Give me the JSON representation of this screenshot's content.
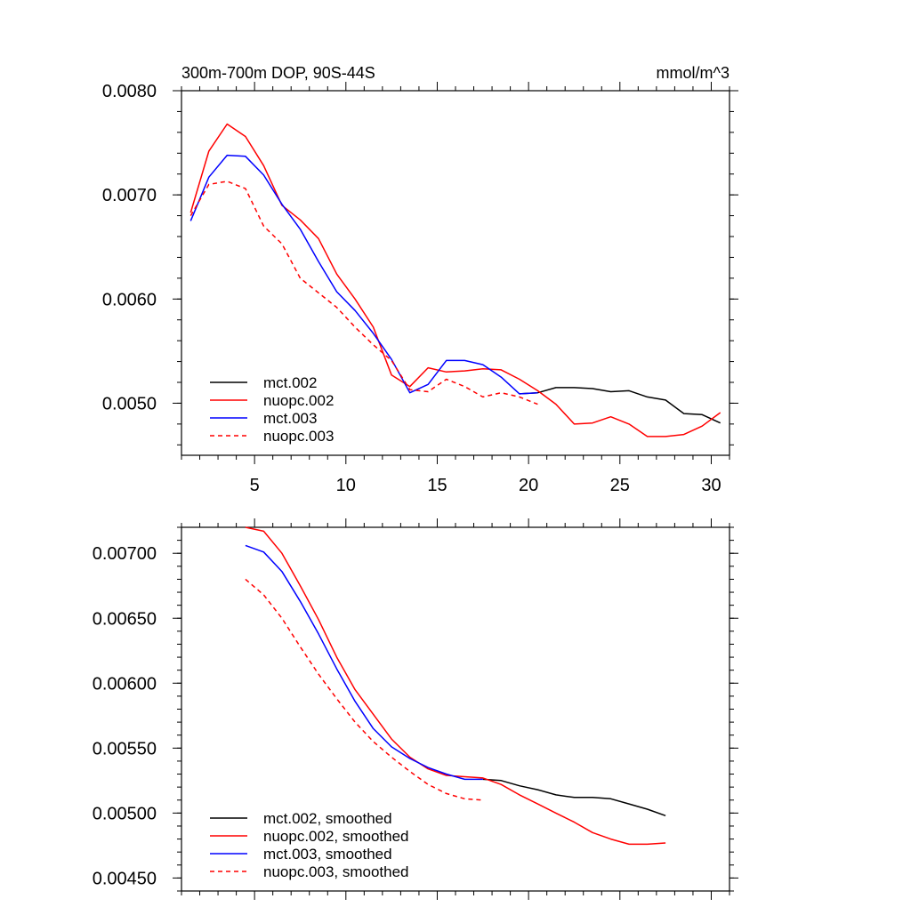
{
  "chart_data": [
    {
      "type": "line",
      "title": "300m-700m DOP, 90S-44S",
      "units": "mmol/m^3",
      "xlim": [
        1,
        31
      ],
      "ylim": [
        0.0045,
        0.008
      ],
      "x_ticks": [
        5,
        10,
        15,
        20,
        25,
        30
      ],
      "x_tick_labels": [
        "5",
        "10",
        "15",
        "20",
        "25",
        "30"
      ],
      "y_ticks": [
        0.005,
        0.006,
        0.007,
        0.008
      ],
      "y_tick_labels": [
        "0.0050",
        "0.0060",
        "0.0070",
        "0.0080"
      ],
      "legend_placement": "lower-left",
      "series": [
        {
          "name": "mct.002",
          "color": "#000000",
          "dash": "solid",
          "x": [
            19.5,
            20.5,
            21.5,
            22.5,
            23.5,
            24.5,
            25.5,
            26.5,
            27.5,
            28.5,
            29.5,
            30.5
          ],
          "values": [
            0.00509,
            0.0051,
            0.00515,
            0.00515,
            0.00514,
            0.00511,
            0.00512,
            0.00506,
            0.00503,
            0.0049,
            0.00489,
            0.00481
          ]
        },
        {
          "name": "nuopc.002",
          "color": "#ff0000",
          "dash": "solid",
          "x": [
            1.5,
            2.5,
            3.5,
            4.5,
            5.5,
            6.5,
            7.5,
            8.5,
            9.5,
            10.5,
            11.5,
            12.5,
            13.5,
            14.5,
            15.5,
            16.5,
            17.5,
            18.5,
            19.5,
            20.5,
            21.5,
            22.5,
            23.5,
            24.5,
            25.5,
            26.5,
            27.5,
            28.5,
            29.5,
            30.5
          ],
          "values": [
            0.00683,
            0.00742,
            0.00768,
            0.00756,
            0.00728,
            0.0069,
            0.00676,
            0.00658,
            0.00624,
            0.006,
            0.00573,
            0.00527,
            0.00516,
            0.00534,
            0.0053,
            0.00531,
            0.00533,
            0.00532,
            0.00523,
            0.00512,
            0.00499,
            0.0048,
            0.00481,
            0.00487,
            0.0048,
            0.00468,
            0.00468,
            0.0047,
            0.00478,
            0.00491
          ]
        },
        {
          "name": "mct.003",
          "color": "#0000ff",
          "dash": "solid",
          "x": [
            1.5,
            2.5,
            3.5,
            4.5,
            5.5,
            6.5,
            7.5,
            8.5,
            9.5,
            10.5,
            11.5,
            12.5,
            13.5,
            14.5,
            15.5,
            16.5,
            17.5,
            18.5,
            19.5,
            20.5
          ],
          "values": [
            0.00675,
            0.00717,
            0.00738,
            0.00737,
            0.00719,
            0.00691,
            0.00667,
            0.00636,
            0.00607,
            0.00589,
            0.00567,
            0.00542,
            0.0051,
            0.00518,
            0.00541,
            0.00541,
            0.00537,
            0.00525,
            0.00509,
            0.0051
          ]
        },
        {
          "name": "nuopc.003",
          "color": "#ff0000",
          "dash": "dashed",
          "x": [
            1.5,
            2.5,
            3.5,
            4.5,
            5.5,
            6.5,
            7.5,
            8.5,
            9.5,
            10.5,
            11.5,
            12.5,
            13.5,
            14.5,
            15.5,
            16.5,
            17.5,
            18.5,
            19.5,
            20.5
          ],
          "values": [
            0.0068,
            0.0071,
            0.00713,
            0.00706,
            0.0067,
            0.00653,
            0.0062,
            0.00606,
            0.00592,
            0.00573,
            0.00556,
            0.00541,
            0.00513,
            0.00511,
            0.00523,
            0.00516,
            0.00506,
            0.0051,
            0.00506,
            0.00499
          ]
        }
      ]
    },
    {
      "type": "line",
      "xlim": [
        1,
        31
      ],
      "ylim": [
        0.0044,
        0.0072
      ],
      "x_ticks": [
        5,
        10,
        15,
        20,
        25,
        30
      ],
      "y_ticks": [
        0.0045,
        0.005,
        0.0055,
        0.006,
        0.0065,
        0.007
      ],
      "y_tick_labels": [
        "0.00450",
        "0.00500",
        "0.00550",
        "0.00600",
        "0.00650",
        "0.00700"
      ],
      "legend_placement": "lower-left",
      "series": [
        {
          "name": "mct.002, smoothed",
          "color": "#000000",
          "dash": "solid",
          "x": [
            17.5,
            18.5,
            19.5,
            20.5,
            21.5,
            22.5,
            23.5,
            24.5,
            25.5,
            26.5,
            27.5
          ],
          "values": [
            0.00526,
            0.00525,
            0.00521,
            0.00518,
            0.00514,
            0.00512,
            0.00512,
            0.00511,
            0.00507,
            0.00503,
            0.00498
          ]
        },
        {
          "name": "nuopc.002, smoothed",
          "color": "#ff0000",
          "dash": "solid",
          "x": [
            4.5,
            5.5,
            6.5,
            7.5,
            8.5,
            9.5,
            10.5,
            11.5,
            12.5,
            13.5,
            14.5,
            15.5,
            16.5,
            17.5,
            18.5,
            19.5,
            20.5,
            21.5,
            22.5,
            23.5,
            24.5,
            25.5,
            26.5,
            27.5
          ],
          "values": [
            0.0072,
            0.00717,
            0.007,
            0.00675,
            0.00649,
            0.0062,
            0.00595,
            0.00576,
            0.00557,
            0.00543,
            0.00534,
            0.00529,
            0.00528,
            0.00527,
            0.00522,
            0.00514,
            0.00507,
            0.005,
            0.00493,
            0.00485,
            0.0048,
            0.00476,
            0.00476,
            0.00477
          ]
        },
        {
          "name": "mct.003, smoothed",
          "color": "#0000ff",
          "dash": "solid",
          "x": [
            4.5,
            5.5,
            6.5,
            7.5,
            8.5,
            9.5,
            10.5,
            11.5,
            12.5,
            13.5,
            14.5,
            15.5,
            16.5,
            17.5
          ],
          "values": [
            0.00706,
            0.00701,
            0.00686,
            0.00663,
            0.00638,
            0.00611,
            0.00586,
            0.00565,
            0.00551,
            0.00542,
            0.00535,
            0.0053,
            0.00526,
            0.00526
          ]
        },
        {
          "name": "nuopc.003, smoothed",
          "color": "#ff0000",
          "dash": "dashed",
          "x": [
            4.5,
            5.5,
            6.5,
            7.5,
            8.5,
            9.5,
            10.5,
            11.5,
            12.5,
            13.5,
            14.5,
            15.5,
            16.5,
            17.5
          ],
          "values": [
            0.0068,
            0.00668,
            0.0065,
            0.00628,
            0.00607,
            0.00588,
            0.0057,
            0.00555,
            0.00543,
            0.00532,
            0.00522,
            0.00515,
            0.00511,
            0.0051
          ]
        }
      ]
    }
  ]
}
